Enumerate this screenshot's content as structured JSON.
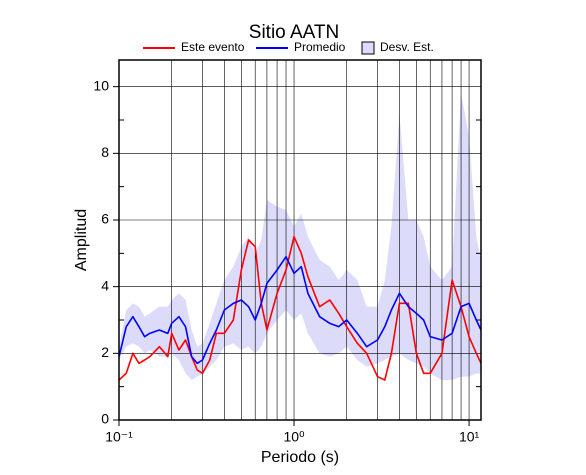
{
  "chart_data": {
    "type": "line",
    "title": "Sitio AATN",
    "xlabel": "Periodo (s)",
    "ylabel": "Amplitud",
    "xscale": "log",
    "xlim": [
      0.1,
      11.7
    ],
    "ylim": [
      0,
      10.8
    ],
    "xticks": [
      {
        "value": 0.1,
        "label": "10⁻¹"
      },
      {
        "value": 1,
        "label": "10⁰"
      },
      {
        "value": 10,
        "label": "10¹"
      }
    ],
    "xminorticks": [
      0.2,
      0.3,
      0.4,
      0.5,
      0.6,
      0.7,
      0.8,
      0.9,
      2,
      3,
      4,
      5,
      6,
      7,
      8,
      9
    ],
    "yticks": [
      0,
      2,
      4,
      6,
      8,
      10
    ],
    "yminorticks": [
      1,
      3,
      5,
      7,
      9
    ],
    "grid": true,
    "x": [
      0.1,
      0.11,
      0.12,
      0.13,
      0.14,
      0.15,
      0.17,
      0.19,
      0.2,
      0.22,
      0.24,
      0.26,
      0.28,
      0.3,
      0.33,
      0.36,
      0.4,
      0.45,
      0.5,
      0.55,
      0.6,
      0.65,
      0.7,
      0.8,
      0.9,
      1.0,
      1.1,
      1.2,
      1.4,
      1.6,
      1.8,
      2.0,
      2.3,
      2.6,
      3.0,
      3.3,
      3.6,
      4.0,
      4.5,
      5.0,
      5.5,
      6.0,
      7.0,
      8.0,
      9.0,
      10,
      11,
      11.7
    ],
    "series": [
      {
        "name": "Este evento",
        "color": "#ff0000",
        "values": [
          1.2,
          1.4,
          2.0,
          1.7,
          1.8,
          1.9,
          2.2,
          1.9,
          2.6,
          2.1,
          2.4,
          1.9,
          1.5,
          1.4,
          1.8,
          2.6,
          2.6,
          3.0,
          4.5,
          5.4,
          5.2,
          3.5,
          2.7,
          3.8,
          4.5,
          5.5,
          5.0,
          4.3,
          3.4,
          3.6,
          3.2,
          2.8,
          2.3,
          2.0,
          1.3,
          1.2,
          2.0,
          3.5,
          3.5,
          2.0,
          1.4,
          1.4,
          2.0,
          4.2,
          3.4,
          2.5,
          2.0,
          1.7
        ]
      },
      {
        "name": "Promedio",
        "color": "#0000ff",
        "values": [
          1.9,
          2.8,
          3.1,
          2.8,
          2.5,
          2.6,
          2.7,
          2.6,
          2.9,
          3.1,
          2.8,
          1.9,
          1.7,
          1.8,
          2.3,
          2.7,
          3.3,
          3.5,
          3.6,
          3.4,
          3.0,
          3.5,
          4.1,
          4.5,
          4.9,
          4.4,
          4.6,
          3.8,
          3.1,
          2.9,
          2.8,
          3.0,
          2.6,
          2.2,
          2.4,
          2.8,
          3.3,
          3.8,
          3.4,
          3.2,
          3.0,
          2.5,
          2.4,
          2.6,
          3.4,
          3.5,
          3.0,
          2.7
        ]
      }
    ],
    "band": {
      "name": "Desv. Est.",
      "color": "#dcdcfa",
      "lower": [
        1.8,
        2.2,
        2.3,
        2.2,
        2.0,
        2.1,
        1.9,
        1.9,
        2.0,
        1.8,
        1.4,
        1.2,
        1.3,
        1.4,
        1.6,
        1.8,
        2.2,
        2.3,
        2.1,
        2.2,
        2.0,
        2.2,
        2.6,
        3.0,
        3.3,
        3.0,
        3.2,
        2.6,
        2.0,
        1.9,
        2.0,
        2.2,
        1.8,
        1.6,
        1.7,
        1.8,
        1.9,
        2.0,
        1.8,
        1.7,
        1.6,
        1.4,
        1.2,
        1.2,
        1.3,
        1.3,
        1.4,
        1.4
      ],
      "upper": [
        2.2,
        3.3,
        3.5,
        3.4,
        3.1,
        3.2,
        3.4,
        3.4,
        3.6,
        3.8,
        3.6,
        2.7,
        2.2,
        2.3,
        2.9,
        3.5,
        4.2,
        4.6,
        5.2,
        5.5,
        5.0,
        5.4,
        6.6,
        6.4,
        6.3,
        5.8,
        6.2,
        5.5,
        4.8,
        4.6,
        4.2,
        4.5,
        4.2,
        3.4,
        3.4,
        4.2,
        5.8,
        9.2,
        6.0,
        6.0,
        5.5,
        4.6,
        4.2,
        4.6,
        9.8,
        8.5,
        5.5,
        4.8
      ]
    }
  }
}
